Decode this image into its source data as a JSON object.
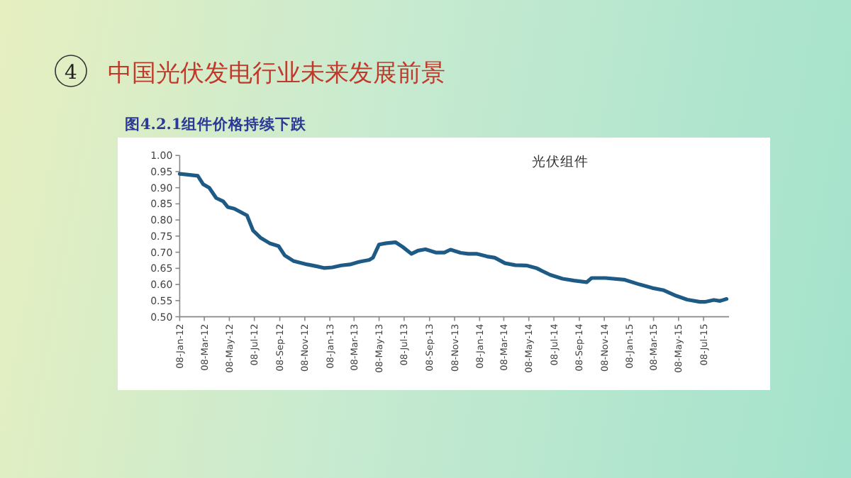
{
  "chart_data": {
    "type": "line",
    "title": "中国光伏发电行业未来发展前景",
    "subtitle": "图4.2.1组件价格持续下跌",
    "annotations": [
      "4"
    ],
    "xlim": [
      "2012-01-08",
      "2015-09-08"
    ],
    "xticks": [
      {
        "value": "2012-01-08",
        "label": "08-Jan-12"
      },
      {
        "value": "2012-03-08",
        "label": "08-Mar-12"
      },
      {
        "value": "2012-05-08",
        "label": "08-May-12"
      },
      {
        "value": "2012-07-08",
        "label": "08-Jul-12"
      },
      {
        "value": "2012-09-08",
        "label": "08-Sep-12"
      },
      {
        "value": "2012-11-08",
        "label": "08-Nov-12"
      },
      {
        "value": "2013-01-08",
        "label": "08-Jan-13"
      },
      {
        "value": "2013-03-08",
        "label": "08-Mar-13"
      },
      {
        "value": "2013-05-08",
        "label": "08-May-13"
      },
      {
        "value": "2013-07-08",
        "label": "08-Jul-13"
      },
      {
        "value": "2013-09-08",
        "label": "08-Sep-13"
      },
      {
        "value": "2013-11-08",
        "label": "08-Nov-13"
      },
      {
        "value": "2014-01-08",
        "label": "08-Jan-14"
      },
      {
        "value": "2014-03-08",
        "label": "08-Mar-14"
      },
      {
        "value": "2014-05-08",
        "label": "08-May-14"
      },
      {
        "value": "2014-07-08",
        "label": "08-Jul-14"
      },
      {
        "value": "2014-09-08",
        "label": "08-Sep-14"
      },
      {
        "value": "2014-11-08",
        "label": "08-Nov-14"
      },
      {
        "value": "2015-01-08",
        "label": "08-Jan-15"
      },
      {
        "value": "2015-03-08",
        "label": "08-Mar-15"
      },
      {
        "value": "2015-05-08",
        "label": "08-May-15"
      },
      {
        "value": "2015-07-08",
        "label": "08-Jul-15"
      }
    ],
    "ylim": [
      0.5,
      1.0
    ],
    "yticks": [
      {
        "value": 0.5,
        "label": "0.50"
      },
      {
        "value": 0.55,
        "label": "0.55"
      },
      {
        "value": 0.6,
        "label": "0.60"
      },
      {
        "value": 0.65,
        "label": "0.65"
      },
      {
        "value": 0.7,
        "label": "0.70"
      },
      {
        "value": 0.75,
        "label": "0.75"
      },
      {
        "value": 0.8,
        "label": "0.80"
      },
      {
        "value": 0.85,
        "label": "0.85"
      },
      {
        "value": 0.9,
        "label": "0.90"
      },
      {
        "value": 0.95,
        "label": "0.95"
      },
      {
        "value": 1.0,
        "label": "1.00"
      }
    ],
    "grid": false,
    "line_style": "solid",
    "series": [
      {
        "name": "光伏组件",
        "color": "#1d5a85",
        "x": [
          "2012-01-08",
          "2012-02-21",
          "2012-03-05",
          "2012-03-20",
          "2012-04-06",
          "2012-04-23",
          "2012-05-04",
          "2012-05-20",
          "2012-06-20",
          "2012-07-05",
          "2012-07-23",
          "2012-08-14",
          "2012-09-05",
          "2012-09-20",
          "2012-10-11",
          "2012-11-14",
          "2012-12-08",
          "2012-12-26",
          "2013-01-14",
          "2013-02-05",
          "2013-02-26",
          "2013-03-20",
          "2013-04-14",
          "2013-04-23",
          "2013-05-08",
          "2013-05-26",
          "2013-06-17",
          "2013-07-05",
          "2013-07-26",
          "2013-08-11",
          "2013-08-29",
          "2013-09-23",
          "2013-10-14",
          "2013-10-29",
          "2013-11-23",
          "2013-12-11",
          "2014-01-02",
          "2014-01-26",
          "2014-02-14",
          "2014-03-11",
          "2014-04-05",
          "2014-05-02",
          "2014-05-26",
          "2014-06-29",
          "2014-07-29",
          "2014-08-26",
          "2014-09-26",
          "2014-10-08",
          "2014-11-11",
          "2014-12-26",
          "2015-02-02",
          "2015-03-05",
          "2015-04-02",
          "2015-05-02",
          "2015-05-29",
          "2015-06-29",
          "2015-07-11",
          "2015-08-02",
          "2015-08-17",
          "2015-09-02"
        ],
        "values": [
          0.943,
          0.937,
          0.911,
          0.9,
          0.868,
          0.858,
          0.84,
          0.835,
          0.814,
          0.767,
          0.745,
          0.728,
          0.719,
          0.69,
          0.673,
          0.662,
          0.656,
          0.651,
          0.653,
          0.659,
          0.662,
          0.67,
          0.676,
          0.683,
          0.724,
          0.728,
          0.731,
          0.716,
          0.695,
          0.705,
          0.709,
          0.699,
          0.699,
          0.708,
          0.698,
          0.695,
          0.695,
          0.687,
          0.683,
          0.666,
          0.66,
          0.659,
          0.651,
          0.63,
          0.618,
          0.612,
          0.607,
          0.62,
          0.62,
          0.615,
          0.6,
          0.589,
          0.582,
          0.565,
          0.553,
          0.546,
          0.546,
          0.552,
          0.549,
          0.555
        ]
      }
    ]
  }
}
